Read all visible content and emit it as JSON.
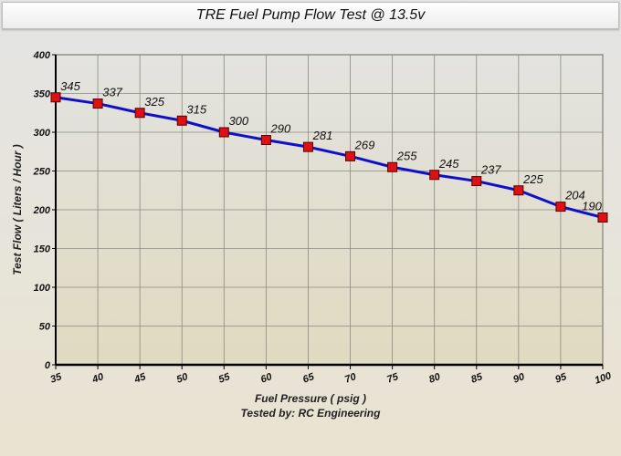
{
  "chart_data": {
    "type": "line",
    "title": "TRE Fuel Pump Flow Test @ 13.5v",
    "xlabel": "Fuel Pressure ( psig )",
    "subtitle": "Tested by: RC Engineering",
    "ylabel": "Test Flow ( Liters / Hour )",
    "x": [
      35,
      40,
      45,
      50,
      55,
      60,
      65,
      70,
      75,
      80,
      85,
      90,
      95,
      100
    ],
    "series": [
      {
        "values": [
          345,
          337,
          325,
          315,
          300,
          290,
          281,
          269,
          255,
          245,
          237,
          225,
          204,
          190
        ]
      }
    ],
    "xlim": [
      35,
      100
    ],
    "ylim": [
      0,
      400
    ],
    "xticks": [
      35,
      40,
      45,
      50,
      55,
      60,
      65,
      70,
      75,
      80,
      85,
      90,
      95,
      100
    ],
    "yticks": [
      0,
      50,
      100,
      150,
      200,
      250,
      300,
      350,
      400
    ],
    "grid": true,
    "data_labels": true,
    "colors": {
      "line": "#1010c8",
      "marker": "#dd1111"
    }
  }
}
